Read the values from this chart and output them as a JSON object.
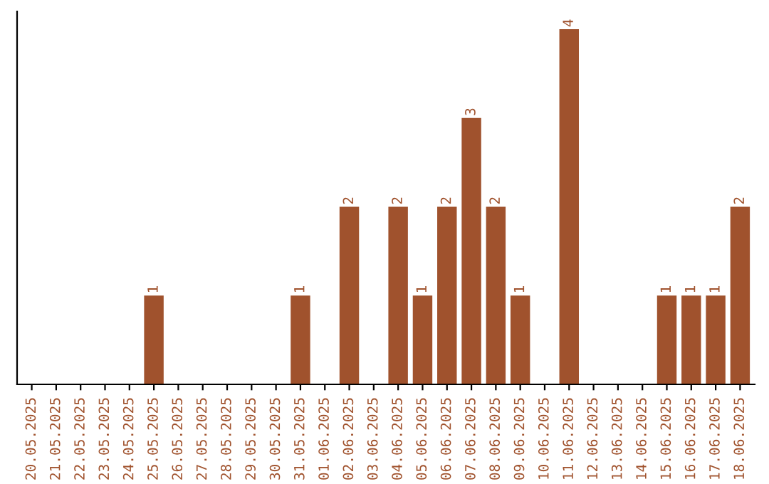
{
  "chart_data": {
    "type": "bar",
    "categories": [
      "20.05.2025",
      "21.05.2025",
      "22.05.2025",
      "23.05.2025",
      "24.05.2025",
      "25.05.2025",
      "26.05.2025",
      "27.05.2025",
      "28.05.2025",
      "29.05.2025",
      "30.05.2025",
      "31.05.2025",
      "01.06.2025",
      "02.06.2025",
      "03.06.2025",
      "04.06.2025",
      "05.06.2025",
      "06.06.2025",
      "07.06.2025",
      "08.06.2025",
      "09.06.2025",
      "10.06.2025",
      "11.06.2025",
      "12.06.2025",
      "13.06.2025",
      "14.06.2025",
      "15.06.2025",
      "16.06.2025",
      "17.06.2025",
      "18.06.2025"
    ],
    "values": [
      0,
      0,
      0,
      0,
      0,
      1,
      0,
      0,
      0,
      0,
      0,
      1,
      0,
      2,
      0,
      2,
      1,
      2,
      3,
      2,
      1,
      0,
      4,
      0,
      0,
      0,
      1,
      1,
      1,
      2
    ],
    "value_labels": [
      null,
      null,
      null,
      null,
      null,
      "1",
      null,
      null,
      null,
      null,
      null,
      "1",
      null,
      "2",
      null,
      "2",
      "1",
      "2",
      "3",
      "2",
      "1",
      null,
      "4",
      null,
      null,
      null,
      "1",
      "1",
      "1",
      "2"
    ],
    "color": "#a0522d",
    "tick_labels": "x",
    "grid": false
  }
}
